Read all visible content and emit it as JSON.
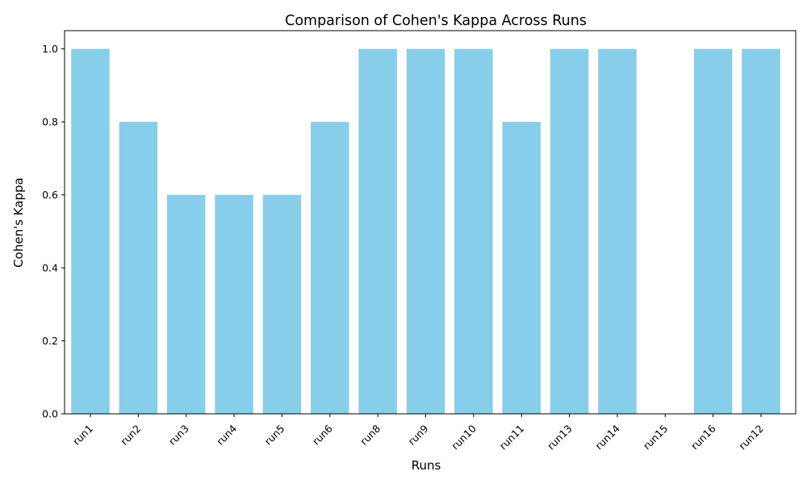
{
  "chart_data": {
    "type": "bar",
    "title": "Comparison of Cohen's Kappa Across Runs",
    "xlabel": "Runs",
    "ylabel": "Cohen's Kappa",
    "categories": [
      "run1",
      "run2",
      "run3",
      "run4",
      "run5",
      "run6",
      "run8",
      "run9",
      "run10",
      "run11",
      "run13",
      "run14",
      "run15",
      "run16",
      "run12"
    ],
    "values": [
      1.0,
      0.8,
      0.6,
      0.6,
      0.6,
      0.8,
      1.0,
      1.0,
      1.0,
      0.8,
      1.0,
      1.0,
      0.0,
      1.0,
      1.0
    ],
    "ylim": [
      0,
      1.05
    ],
    "yticks": [
      "0.0",
      "0.2",
      "0.4",
      "0.6",
      "0.8",
      "1.0"
    ],
    "grid": false,
    "legend": "none",
    "bar_color": "#87CEEB",
    "x_tick_rotation_deg": 45
  }
}
